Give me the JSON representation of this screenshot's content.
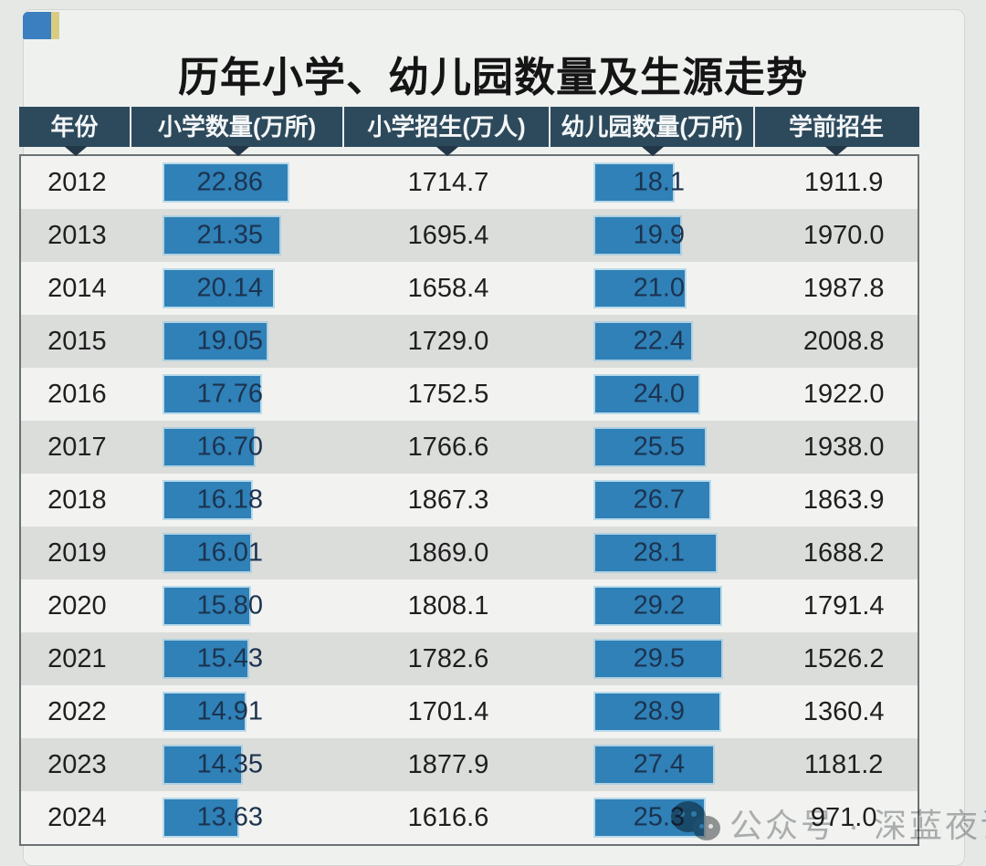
{
  "page": {
    "title": "历年小学、幼儿园数量及生源走势",
    "watermark": {
      "label": "公众号 · 深蓝夜读"
    },
    "colors": {
      "page_bg": "#e6e8e6",
      "card_bg": "#eff1ef",
      "header_bg": "#2d4a5c",
      "header_text": "#f4f6f7",
      "row_light": "#f2f3f1",
      "row_dark": "#dbdddb",
      "bar_fill": "#2f81b7",
      "bar_text": "#1c3350",
      "marker": "#223747",
      "logo_blue": "#3c7fc0",
      "logo_yellow": "#d9cc82"
    }
  },
  "chart_data": {
    "type": "table",
    "title": "历年小学、幼儿园数量及生源走势",
    "columns": [
      {
        "label": "年份"
      },
      {
        "label": "小学数量(万所)",
        "style": "data-bar"
      },
      {
        "label": "小学招生(万人)"
      },
      {
        "label": "幼儿园数量(万所)",
        "style": "data-bar"
      },
      {
        "label": "学前招生"
      }
    ],
    "rows": [
      {
        "year": "2012",
        "primary_schools": "22.86",
        "primary_enrollment": "1714.7",
        "kindergartens": "18.1",
        "preschool_enrollment": "1911.9"
      },
      {
        "year": "2013",
        "primary_schools": "21.35",
        "primary_enrollment": "1695.4",
        "kindergartens": "19.9",
        "preschool_enrollment": "1970.0"
      },
      {
        "year": "2014",
        "primary_schools": "20.14",
        "primary_enrollment": "1658.4",
        "kindergartens": "21.0",
        "preschool_enrollment": "1987.8"
      },
      {
        "year": "2015",
        "primary_schools": "19.05",
        "primary_enrollment": "1729.0",
        "kindergartens": "22.4",
        "preschool_enrollment": "2008.8"
      },
      {
        "year": "2016",
        "primary_schools": "17.76",
        "primary_enrollment": "1752.5",
        "kindergartens": "24.0",
        "preschool_enrollment": "1922.0"
      },
      {
        "year": "2017",
        "primary_schools": "16.70",
        "primary_enrollment": "1766.6",
        "kindergartens": "25.5",
        "preschool_enrollment": "1938.0"
      },
      {
        "year": "2018",
        "primary_schools": "16.18",
        "primary_enrollment": "1867.3",
        "kindergartens": "26.7",
        "preschool_enrollment": "1863.9"
      },
      {
        "year": "2019",
        "primary_schools": "16.01",
        "primary_enrollment": "1869.0",
        "kindergartens": "28.1",
        "preschool_enrollment": "1688.2"
      },
      {
        "year": "2020",
        "primary_schools": "15.80",
        "primary_enrollment": "1808.1",
        "kindergartens": "29.2",
        "preschool_enrollment": "1791.4"
      },
      {
        "year": "2021",
        "primary_schools": "15.43",
        "primary_enrollment": "1782.6",
        "kindergartens": "29.5",
        "preschool_enrollment": "1526.2"
      },
      {
        "year": "2022",
        "primary_schools": "14.91",
        "primary_enrollment": "1701.4",
        "kindergartens": "28.9",
        "preschool_enrollment": "1360.4"
      },
      {
        "year": "2023",
        "primary_schools": "14.35",
        "primary_enrollment": "1877.9",
        "kindergartens": "27.4",
        "preschool_enrollment": "1181.2"
      },
      {
        "year": "2024",
        "primary_schools": "13.63",
        "primary_enrollment": "1616.6",
        "kindergartens": "25.3",
        "preschool_enrollment": "971.0"
      }
    ]
  }
}
